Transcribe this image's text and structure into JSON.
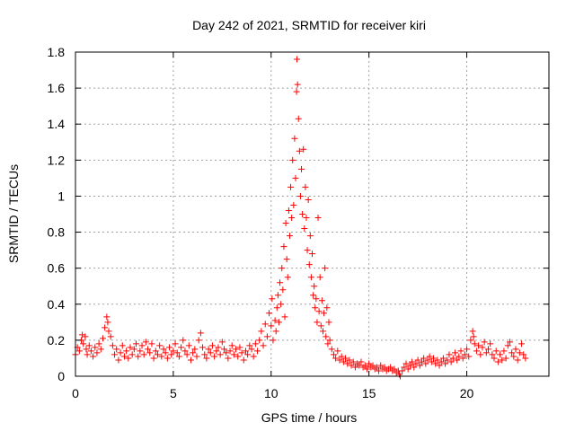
{
  "chart_data": {
    "type": "scatter",
    "title": "Day 242 of 2021, SRMTID for receiver kiri",
    "xlabel": "GPS time / hours",
    "ylabel": "SRMTID / TECUs",
    "xlim": [
      0,
      24.2
    ],
    "ylim": [
      0,
      1.8
    ],
    "xticks": [
      0,
      5,
      10,
      15,
      20
    ],
    "xtick_labels": [
      "0",
      "5",
      "10",
      "15",
      "20"
    ],
    "yticks": [
      0,
      0.2,
      0.4,
      0.6,
      0.8,
      1.0,
      1.2,
      1.4,
      1.6,
      1.8
    ],
    "ytick_labels": [
      "0",
      "0.2",
      "0.4",
      "0.6",
      "0.8",
      "1",
      "1.2",
      "1.4",
      "1.6",
      "1.8"
    ],
    "grid": true,
    "marker": "+",
    "color": "#ff0000",
    "series": [
      {
        "name": "SRMTID",
        "points": [
          [
            0.0,
            0.12
          ],
          [
            0.1,
            0.16
          ],
          [
            0.2,
            0.14
          ],
          [
            0.3,
            0.2
          ],
          [
            0.35,
            0.23
          ],
          [
            0.4,
            0.18
          ],
          [
            0.5,
            0.22
          ],
          [
            0.55,
            0.15
          ],
          [
            0.6,
            0.12
          ],
          [
            0.7,
            0.17
          ],
          [
            0.8,
            0.14
          ],
          [
            0.9,
            0.11
          ],
          [
            1.0,
            0.16
          ],
          [
            1.1,
            0.13
          ],
          [
            1.2,
            0.18
          ],
          [
            1.3,
            0.15
          ],
          [
            1.4,
            0.21
          ],
          [
            1.5,
            0.27
          ],
          [
            1.6,
            0.33
          ],
          [
            1.65,
            0.3
          ],
          [
            1.7,
            0.25
          ],
          [
            1.8,
            0.22
          ],
          [
            1.9,
            0.17
          ],
          [
            2.0,
            0.12
          ],
          [
            2.1,
            0.15
          ],
          [
            2.2,
            0.09
          ],
          [
            2.3,
            0.13
          ],
          [
            2.4,
            0.17
          ],
          [
            2.5,
            0.11
          ],
          [
            2.6,
            0.14
          ],
          [
            2.7,
            0.1
          ],
          [
            2.8,
            0.16
          ],
          [
            2.9,
            0.12
          ],
          [
            3.0,
            0.15
          ],
          [
            3.1,
            0.18
          ],
          [
            3.2,
            0.11
          ],
          [
            3.3,
            0.14
          ],
          [
            3.4,
            0.17
          ],
          [
            3.5,
            0.12
          ],
          [
            3.6,
            0.19
          ],
          [
            3.7,
            0.15
          ],
          [
            3.8,
            0.13
          ],
          [
            3.9,
            0.18
          ],
          [
            4.0,
            0.1
          ],
          [
            4.1,
            0.14
          ],
          [
            4.2,
            0.12
          ],
          [
            4.3,
            0.17
          ],
          [
            4.4,
            0.11
          ],
          [
            4.5,
            0.15
          ],
          [
            4.6,
            0.13
          ],
          [
            4.7,
            0.1
          ],
          [
            4.8,
            0.16
          ],
          [
            4.9,
            0.12
          ],
          [
            5.0,
            0.14
          ],
          [
            5.1,
            0.18
          ],
          [
            5.2,
            0.13
          ],
          [
            5.3,
            0.11
          ],
          [
            5.4,
            0.16
          ],
          [
            5.5,
            0.2
          ],
          [
            5.6,
            0.14
          ],
          [
            5.7,
            0.12
          ],
          [
            5.8,
            0.17
          ],
          [
            5.9,
            0.09
          ],
          [
            6.0,
            0.13
          ],
          [
            6.1,
            0.15
          ],
          [
            6.2,
            0.11
          ],
          [
            6.3,
            0.2
          ],
          [
            6.4,
            0.24
          ],
          [
            6.5,
            0.16
          ],
          [
            6.6,
            0.12
          ],
          [
            6.7,
            0.1
          ],
          [
            6.8,
            0.15
          ],
          [
            6.9,
            0.13
          ],
          [
            7.0,
            0.17
          ],
          [
            7.1,
            0.11
          ],
          [
            7.2,
            0.14
          ],
          [
            7.3,
            0.16
          ],
          [
            7.4,
            0.12
          ],
          [
            7.5,
            0.19
          ],
          [
            7.6,
            0.15
          ],
          [
            7.7,
            0.13
          ],
          [
            7.8,
            0.1
          ],
          [
            7.9,
            0.14
          ],
          [
            8.0,
            0.17
          ],
          [
            8.1,
            0.12
          ],
          [
            8.2,
            0.15
          ],
          [
            8.3,
            0.11
          ],
          [
            8.4,
            0.16
          ],
          [
            8.5,
            0.13
          ],
          [
            8.6,
            0.09
          ],
          [
            8.7,
            0.14
          ],
          [
            8.8,
            0.12
          ],
          [
            8.9,
            0.17
          ],
          [
            9.0,
            0.15
          ],
          [
            9.1,
            0.11
          ],
          [
            9.2,
            0.18
          ],
          [
            9.3,
            0.14
          ],
          [
            9.4,
            0.2
          ],
          [
            9.5,
            0.25
          ],
          [
            9.6,
            0.17
          ],
          [
            9.7,
            0.29
          ],
          [
            9.8,
            0.22
          ],
          [
            9.9,
            0.35
          ],
          [
            10.0,
            0.28
          ],
          [
            10.05,
            0.43
          ],
          [
            10.1,
            0.2
          ],
          [
            10.2,
            0.31
          ],
          [
            10.25,
            0.25
          ],
          [
            10.3,
            0.38
          ],
          [
            10.35,
            0.45
          ],
          [
            10.4,
            0.3
          ],
          [
            10.45,
            0.52
          ],
          [
            10.5,
            0.4
          ],
          [
            10.55,
            0.6
          ],
          [
            10.6,
            0.48
          ],
          [
            10.65,
            0.72
          ],
          [
            10.7,
            0.33
          ],
          [
            10.75,
            0.85
          ],
          [
            10.8,
            0.65
          ],
          [
            10.85,
            0.55
          ],
          [
            10.9,
            0.92
          ],
          [
            10.95,
            0.78
          ],
          [
            11.0,
            1.05
          ],
          [
            11.05,
            0.88
          ],
          [
            11.1,
            1.2
          ],
          [
            11.15,
            0.95
          ],
          [
            11.2,
            1.32
          ],
          [
            11.25,
            1.1
          ],
          [
            11.3,
            1.58
          ],
          [
            11.32,
            1.76
          ],
          [
            11.35,
            1.62
          ],
          [
            11.4,
            1.43
          ],
          [
            11.45,
            1.25
          ],
          [
            11.5,
            1.0
          ],
          [
            11.55,
            1.15
          ],
          [
            11.6,
            0.9
          ],
          [
            11.65,
            1.26
          ],
          [
            11.7,
            0.82
          ],
          [
            11.75,
            1.05
          ],
          [
            11.8,
            0.88
          ],
          [
            11.85,
            0.7
          ],
          [
            11.9,
            0.98
          ],
          [
            11.95,
            0.62
          ],
          [
            12.0,
            0.78
          ],
          [
            12.05,
            0.55
          ],
          [
            12.1,
            0.68
          ],
          [
            12.15,
            0.45
          ],
          [
            12.2,
            0.5
          ],
          [
            12.25,
            0.38
          ],
          [
            12.3,
            0.43
          ],
          [
            12.35,
            0.3
          ],
          [
            12.4,
            0.88
          ],
          [
            12.45,
            0.36
          ],
          [
            12.5,
            0.55
          ],
          [
            12.55,
            0.28
          ],
          [
            12.6,
            0.42
          ],
          [
            12.65,
            0.25
          ],
          [
            12.7,
            0.35
          ],
          [
            12.75,
            0.6
          ],
          [
            12.8,
            0.22
          ],
          [
            12.85,
            0.38
          ],
          [
            12.9,
            0.18
          ],
          [
            12.95,
            0.3
          ],
          [
            13.0,
            0.2
          ],
          [
            13.1,
            0.15
          ],
          [
            13.2,
            0.12
          ],
          [
            13.3,
            0.1
          ],
          [
            13.4,
            0.14
          ],
          [
            13.5,
            0.09
          ],
          [
            13.6,
            0.11
          ],
          [
            13.7,
            0.08
          ],
          [
            13.8,
            0.1
          ],
          [
            13.9,
            0.07
          ],
          [
            14.0,
            0.09
          ],
          [
            14.1,
            0.06
          ],
          [
            14.2,
            0.08
          ],
          [
            14.3,
            0.05
          ],
          [
            14.4,
            0.07
          ],
          [
            14.5,
            0.06
          ],
          [
            14.6,
            0.08
          ],
          [
            14.7,
            0.05
          ],
          [
            14.8,
            0.06
          ],
          [
            14.9,
            0.04
          ],
          [
            15.0,
            0.07
          ],
          [
            15.1,
            0.05
          ],
          [
            15.2,
            0.06
          ],
          [
            15.3,
            0.04
          ],
          [
            15.4,
            0.05
          ],
          [
            15.5,
            0.03
          ],
          [
            15.6,
            0.06
          ],
          [
            15.7,
            0.04
          ],
          [
            15.8,
            0.05
          ],
          [
            15.9,
            0.03
          ],
          [
            16.0,
            0.04
          ],
          [
            16.1,
            0.05
          ],
          [
            16.2,
            0.03
          ],
          [
            16.3,
            0.04
          ],
          [
            16.4,
            0.02
          ],
          [
            16.5,
            0.03
          ],
          [
            16.55,
            0.01
          ],
          [
            16.6,
            0.0
          ],
          [
            16.7,
            0.03
          ],
          [
            16.8,
            0.05
          ],
          [
            16.9,
            0.07
          ],
          [
            17.0,
            0.04
          ],
          [
            17.1,
            0.06
          ],
          [
            17.2,
            0.08
          ],
          [
            17.3,
            0.05
          ],
          [
            17.4,
            0.07
          ],
          [
            17.5,
            0.09
          ],
          [
            17.6,
            0.06
          ],
          [
            17.7,
            0.08
          ],
          [
            17.8,
            0.1
          ],
          [
            17.9,
            0.07
          ],
          [
            18.0,
            0.09
          ],
          [
            18.1,
            0.11
          ],
          [
            18.2,
            0.08
          ],
          [
            18.3,
            0.1
          ],
          [
            18.4,
            0.07
          ],
          [
            18.5,
            0.09
          ],
          [
            18.6,
            0.06
          ],
          [
            18.7,
            0.08
          ],
          [
            18.8,
            0.1
          ],
          [
            18.9,
            0.07
          ],
          [
            19.0,
            0.09
          ],
          [
            19.1,
            0.12
          ],
          [
            19.2,
            0.08
          ],
          [
            19.3,
            0.1
          ],
          [
            19.4,
            0.13
          ],
          [
            19.5,
            0.09
          ],
          [
            19.6,
            0.11
          ],
          [
            19.7,
            0.14
          ],
          [
            19.8,
            0.1
          ],
          [
            19.9,
            0.12
          ],
          [
            20.0,
            0.15
          ],
          [
            20.1,
            0.11
          ],
          [
            20.2,
            0.2
          ],
          [
            20.3,
            0.25
          ],
          [
            20.35,
            0.22
          ],
          [
            20.4,
            0.18
          ],
          [
            20.5,
            0.14
          ],
          [
            20.6,
            0.17
          ],
          [
            20.7,
            0.12
          ],
          [
            20.8,
            0.16
          ],
          [
            20.9,
            0.19
          ],
          [
            21.0,
            0.13
          ],
          [
            21.1,
            0.15
          ],
          [
            21.2,
            0.18
          ],
          [
            21.3,
            0.12
          ],
          [
            21.4,
            0.1
          ],
          [
            21.5,
            0.14
          ],
          [
            21.6,
            0.08
          ],
          [
            21.7,
            0.12
          ],
          [
            21.8,
            0.09
          ],
          [
            21.9,
            0.14
          ],
          [
            22.0,
            0.1
          ],
          [
            22.1,
            0.17
          ],
          [
            22.2,
            0.19
          ],
          [
            22.3,
            0.13
          ],
          [
            22.4,
            0.11
          ],
          [
            22.5,
            0.15
          ],
          [
            22.6,
            0.09
          ],
          [
            22.7,
            0.13
          ],
          [
            22.8,
            0.18
          ],
          [
            22.9,
            0.12
          ],
          [
            23.0,
            0.1
          ]
        ]
      }
    ]
  }
}
